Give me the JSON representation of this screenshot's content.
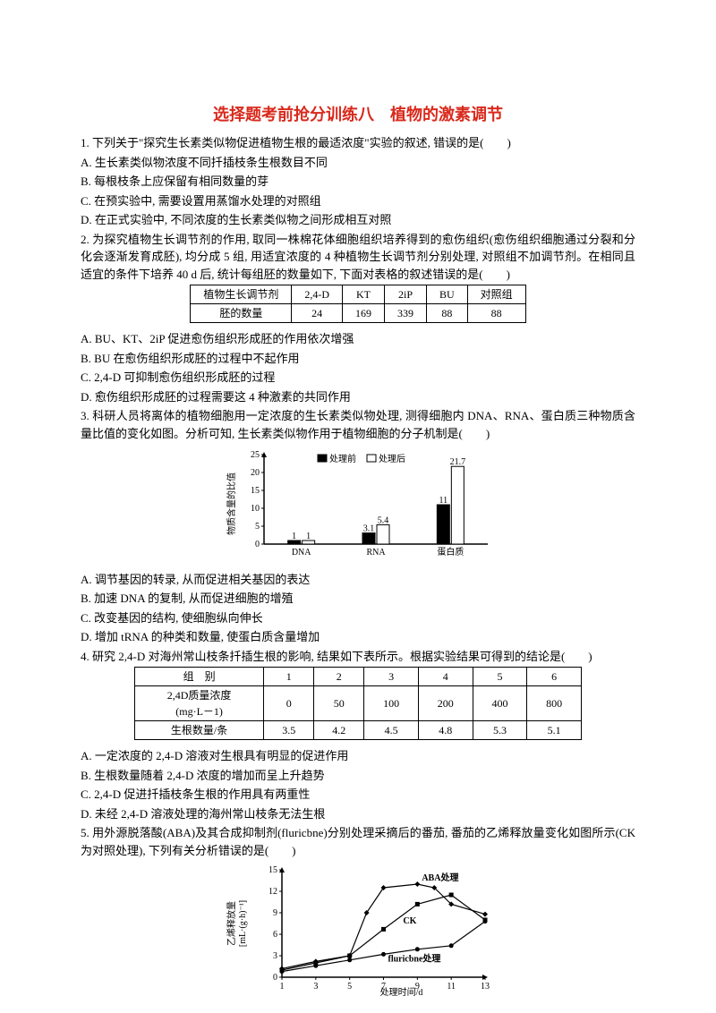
{
  "title": "选择题考前抢分训练八　植物的激素调节",
  "q1": {
    "stem": "1. 下列关于\"探究生长素类似物促进植物生根的最适浓度\"实验的叙述, 错误的是(　　)",
    "a": "A. 生长素类似物浓度不同扦插枝条生根数目不同",
    "b": "B. 每根枝条上应保留有相同数量的芽",
    "c": "C. 在预实验中, 需要设置用蒸馏水处理的对照组",
    "d": "D. 在正式实验中, 不同浓度的生长素类似物之间形成相互对照"
  },
  "q2": {
    "stem": "2. 为探究植物生长调节剂的作用, 取同一株棉花体细胞组织培养得到的愈伤组织(愈伤组织细胞通过分裂和分化会逐渐发育成胚), 均分成 5 组, 用适宜浓度的 4 种植物生长调节剂分别处理, 对照组不加调节剂。在相同且适宜的条件下培养 40 d 后, 统计每组胚的数量如下, 下面对表格的叙述错误的是(　　)",
    "table": {
      "h1": "植物生长调节剂",
      "h2": "2,4-D",
      "h3": "KT",
      "h4": "2iP",
      "h5": "BU",
      "h6": "对照组",
      "r1": "胚的数量",
      "c1": "24",
      "c2": "169",
      "c3": "339",
      "c4": "88",
      "c5": "88"
    },
    "a": "A. BU、KT、2iP 促进愈伤组织形成胚的作用依次增强",
    "b": "B. BU 在愈伤组织形成胚的过程中不起作用",
    "c": "C. 2,4-D 可抑制愈伤组织形成胚的过程",
    "d": "D. 愈伤组织形成胚的过程需要这 4 种激素的共同作用"
  },
  "q3": {
    "stem": "3. 科研人员将离体的植物细胞用一定浓度的生长素类似物处理, 测得细胞内 DNA、RNA、蛋白质三种物质含量比值的变化如图。分析可知, 生长素类似物作用于植物细胞的分子机制是(　　)",
    "chart": {
      "ylabel": "物质含量的比值",
      "ymax": 25,
      "yticks": [
        0,
        5,
        10,
        15,
        20,
        25
      ],
      "cats": [
        "DNA",
        "RNA",
        "蛋白质"
      ],
      "legend": {
        "before": "处理前",
        "after": "处理后"
      },
      "colors": {
        "before": "#000000",
        "after": "#ffffff",
        "border": "#000"
      },
      "values": {
        "before": [
          1,
          3.1,
          11
        ],
        "after": [
          1,
          5.4,
          21.7
        ]
      },
      "labels": {
        "before": [
          "1",
          "3.1",
          "11"
        ],
        "after": [
          "1",
          "5.4",
          "21.7"
        ]
      },
      "fontsize": 10
    },
    "a": "A. 调节基因的转录, 从而促进相关基因的表达",
    "b": "B. 加速 DNA 的复制, 从而促进细胞的增殖",
    "c": "C. 改变基因的结构, 使细胞纵向伸长",
    "d": "D. 增加 tRNA 的种类和数量, 使蛋白质含量增加"
  },
  "q4": {
    "stem": "4. 研究 2,4-D 对海州常山枝条扦插生根的影响, 结果如下表所示。根据实验结果可得到的结论是(　　)",
    "table": {
      "r0": "组　别",
      "g": [
        "1",
        "2",
        "3",
        "4",
        "5",
        "6"
      ],
      "r1a": "2,4D质量浓度",
      "r1b": "(mg·L－1)",
      "conc": [
        "0",
        "50",
        "100",
        "200",
        "400",
        "800"
      ],
      "r2": "生根数量/条",
      "roots": [
        "3.5",
        "4.2",
        "4.5",
        "4.8",
        "5.3",
        "5.1"
      ]
    },
    "a": "A. 一定浓度的 2,4-D 溶液对生根具有明显的促进作用",
    "b": "B. 生根数量随着 2,4-D 浓度的增加而呈上升趋势",
    "c": "C. 2,4-D 促进扦插枝条生根的作用具有两重性",
    "d": "D. 未经 2,4-D 溶液处理的海州常山枝条无法生根"
  },
  "q5": {
    "stem": "5. 用外源脱落酸(ABA)及其合成抑制剂(fluricbne)分别处理采摘后的番茄, 番茄的乙烯释放量变化如图所示(CK 为对照处理), 下列有关分析错误的是(　　)",
    "chart": {
      "xlabel": "处理时间/d",
      "ylabel_lines": [
        "乙烯释放量",
        "[mL·(g·h)⁻¹]"
      ],
      "xticks": [
        1,
        3,
        5,
        7,
        9,
        11,
        13
      ],
      "yticks": [
        0,
        3,
        6,
        9,
        12,
        15
      ],
      "series": {
        "ABA": {
          "label": "ABA处理",
          "pts": [
            [
              1,
              1.2
            ],
            [
              3,
              2.2
            ],
            [
              5,
              3.0
            ],
            [
              6,
              9.0
            ],
            [
              7,
              12.5
            ],
            [
              9,
              13.0
            ],
            [
              10,
              12.5
            ],
            [
              11,
              10.2
            ],
            [
              13,
              8.8
            ]
          ]
        },
        "CK": {
          "label": "CK",
          "pts": [
            [
              1,
              1.0
            ],
            [
              3,
              2.0
            ],
            [
              5,
              3.0
            ],
            [
              7,
              6.7
            ],
            [
              9,
              10.2
            ],
            [
              11,
              11.5
            ],
            [
              13,
              8.0
            ]
          ]
        },
        "F": {
          "label": "fluricbne处理",
          "pts": [
            [
              1,
              0.8
            ],
            [
              3,
              1.6
            ],
            [
              5,
              2.4
            ],
            [
              7,
              3.2
            ],
            [
              9,
              3.9
            ],
            [
              11,
              4.4
            ],
            [
              13,
              7.8
            ]
          ]
        }
      },
      "color": "#000",
      "fontsize": 10
    }
  }
}
